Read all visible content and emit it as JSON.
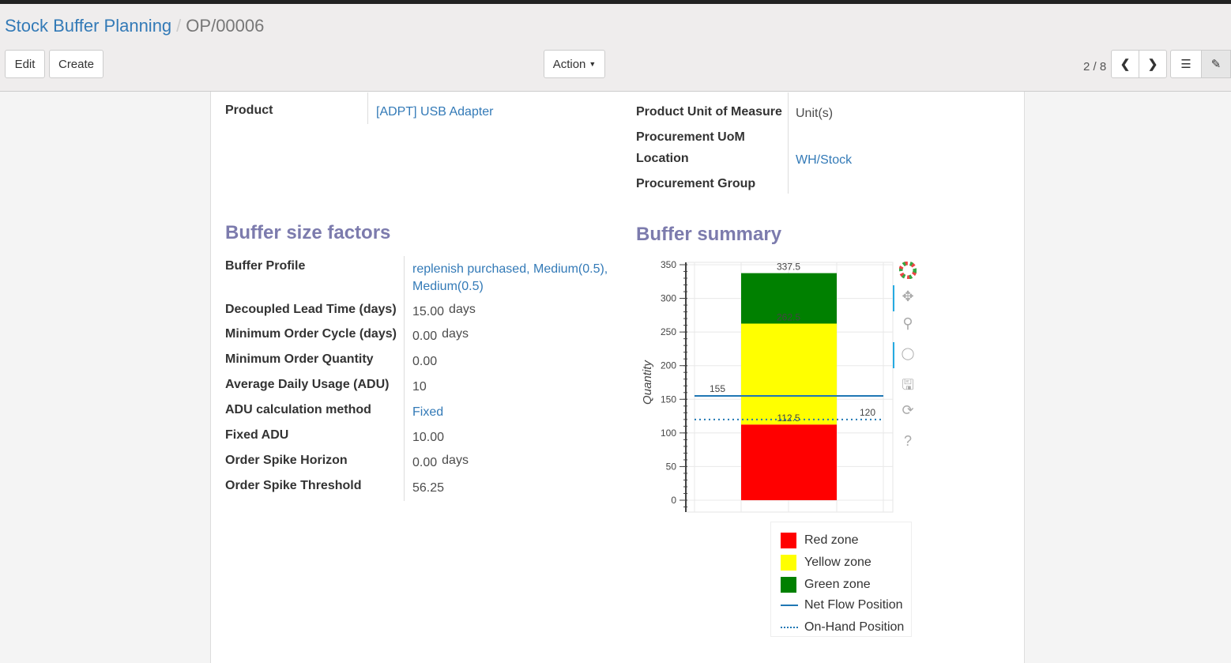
{
  "breadcrumb": {
    "parent": "Stock Buffer Planning",
    "current": "OP/00006"
  },
  "toolbar": {
    "edit": "Edit",
    "create": "Create",
    "action": "Action",
    "pager": "2 / 8"
  },
  "form": {
    "product_label": "Product",
    "product_value": "[ADPT] USB Adapter",
    "uom_label": "Product Unit of Measure",
    "uom_value": "Unit(s)",
    "proc_uom_label": "Procurement UoM",
    "location_label": "Location",
    "location_value": "WH/Stock",
    "proc_group_label": "Procurement Group"
  },
  "factors": {
    "title": "Buffer size factors",
    "rows": [
      {
        "label": "Buffer Profile",
        "value": "replenish purchased, Medium(0.5), Medium(0.5)",
        "link": true
      },
      {
        "label": "Decoupled Lead Time (days)",
        "value": "15.00",
        "unit": "days"
      },
      {
        "label": "Minimum Order Cycle (days)",
        "value": "0.00",
        "unit": "days"
      },
      {
        "label": "Minimum Order Quantity",
        "value": "0.00"
      },
      {
        "label": "Average Daily Usage (ADU)",
        "value": "10"
      },
      {
        "label": "ADU calculation method",
        "value": "Fixed",
        "link": true
      },
      {
        "label": "Fixed ADU",
        "value": "10.00"
      },
      {
        "label": "Order Spike Horizon",
        "value": "0.00",
        "unit": "days"
      },
      {
        "label": "Order Spike Threshold",
        "value": "56.25"
      }
    ]
  },
  "summary": {
    "title": "Buffer summary"
  },
  "chart_data": {
    "type": "bar",
    "ylabel": "Quantity",
    "ylim": [
      0,
      350
    ],
    "yticks": [
      0,
      50,
      100,
      150,
      200,
      250,
      300,
      350
    ],
    "grid": true,
    "stacked": [
      {
        "name": "Red zone",
        "from": 0,
        "to": 112.5,
        "color": "#ff0000",
        "label": "112.5"
      },
      {
        "name": "Yellow zone",
        "from": 112.5,
        "to": 262.5,
        "color": "#ffff00",
        "label": "262.5"
      },
      {
        "name": "Green zone",
        "from": 262.5,
        "to": 337.5,
        "color": "#008000",
        "label": "337.5"
      }
    ],
    "lines": [
      {
        "name": "Net Flow Position",
        "value": 155,
        "style": "solid",
        "color": "#1f77b4",
        "label": "155"
      },
      {
        "name": "On-Hand Position",
        "value": 120,
        "style": "dotted",
        "color": "#1f77b4",
        "label": "120"
      }
    ],
    "legend": "bottom"
  }
}
